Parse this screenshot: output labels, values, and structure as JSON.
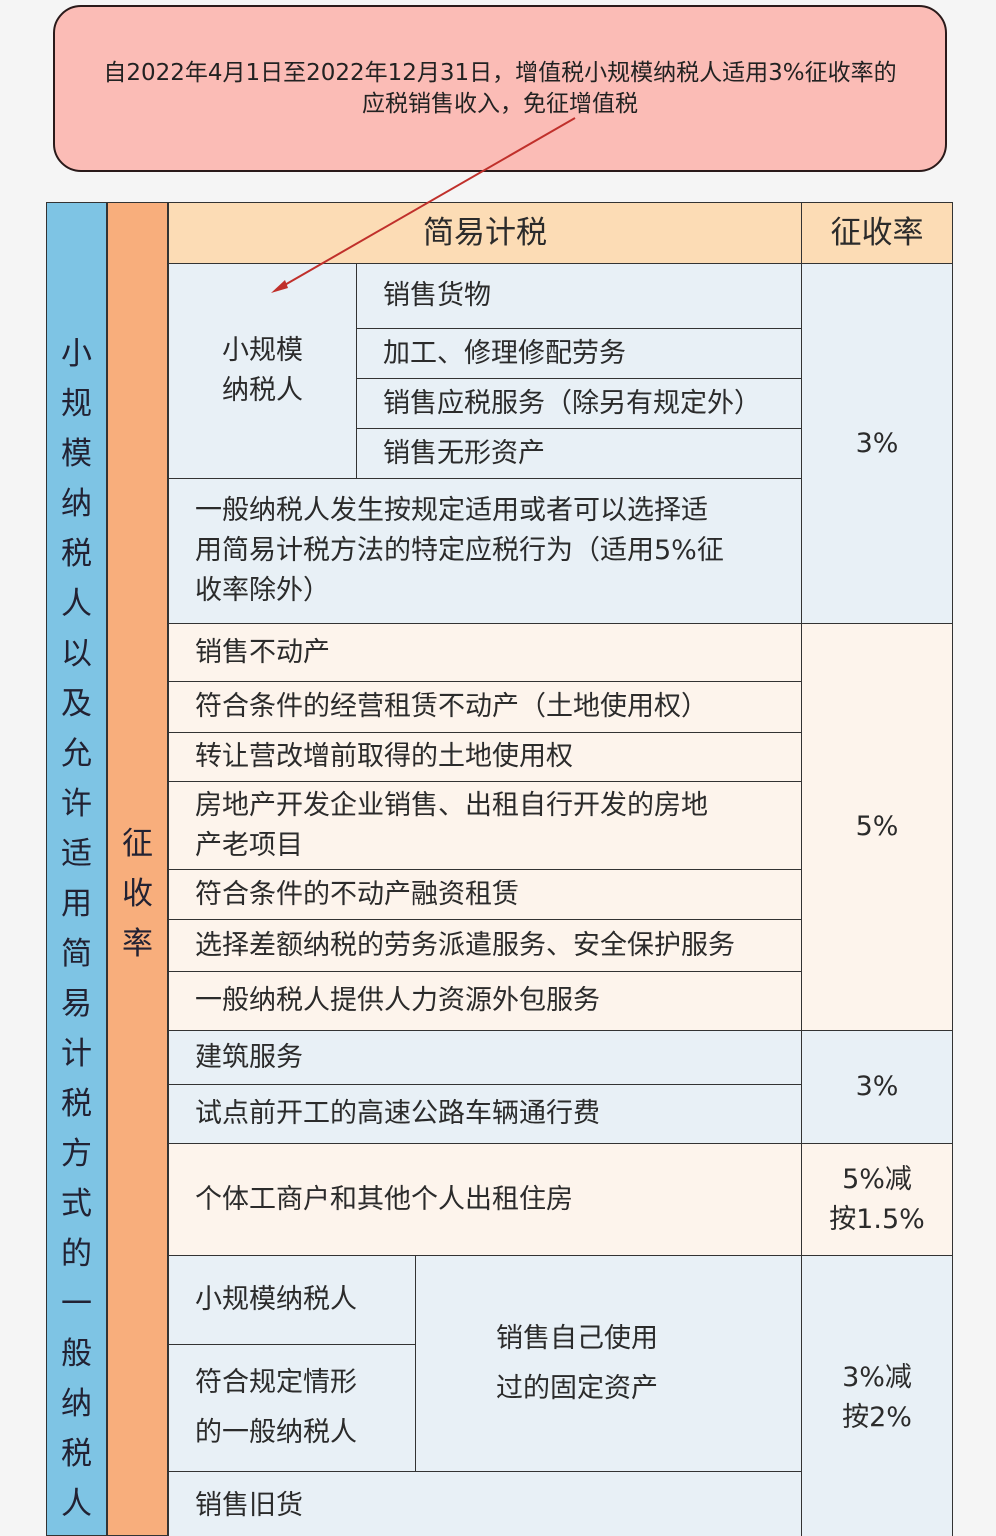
{
  "callout": {
    "line1": "自2022年4月1日至2022年12月31日，增值税小规模纳税人适用3%征收率的",
    "line2": "应税销售收入，免征增值税"
  },
  "side_label": "小规模纳税人以及允许适用简易计税方式的一般纳税人",
  "rate_column_label": "征收率",
  "header": {
    "main": "简易计税",
    "rate": "征收率"
  },
  "group_a": {
    "taxpayer": "小规模\n纳税人",
    "items": [
      "销售货物",
      "加工、修理修配劳务",
      "销售应税服务（除另有规定外）",
      "销售无形资产"
    ],
    "general": "一般纳税人发生按规定适用或者可以选择适\n用简易计税方法的特定应税行为（适用5%征\n收率除外）",
    "rate": "3%"
  },
  "group_b": {
    "items": [
      "销售不动产",
      "符合条件的经营租赁不动产（土地使用权）",
      "转让营改增前取得的土地使用权",
      "房地产开发企业销售、出租自行开发的房地\n产老项目",
      "符合条件的不动产融资租赁",
      "选择差额纳税的劳务派遣服务、安全保护服务",
      "一般纳税人提供人力资源外包服务"
    ],
    "rate": "5%"
  },
  "group_c": {
    "items": [
      "建筑服务",
      "试点前开工的高速公路车辆通行费"
    ],
    "rate": "3%"
  },
  "group_d": {
    "item": "个体工商户和其他个人出租住房",
    "rate": "5%减\n按1.5%"
  },
  "group_e": {
    "taxpayers": [
      "小规模纳税人",
      "符合规定情形\n的一般纳税人"
    ],
    "activity": "销售自己使用\n过的固定资产",
    "used_goods": "销售旧货",
    "rate": "3%减\n按2%"
  },
  "colors": {
    "callout": "#fbbcb6",
    "arrow": "#c0302b",
    "side_blue": "#7ec4e4",
    "side_orange": "#f8ae7c",
    "header": "#fcdcb5",
    "row_blue": "#e8f0f6",
    "row_peach": "#fdf4ec"
  }
}
